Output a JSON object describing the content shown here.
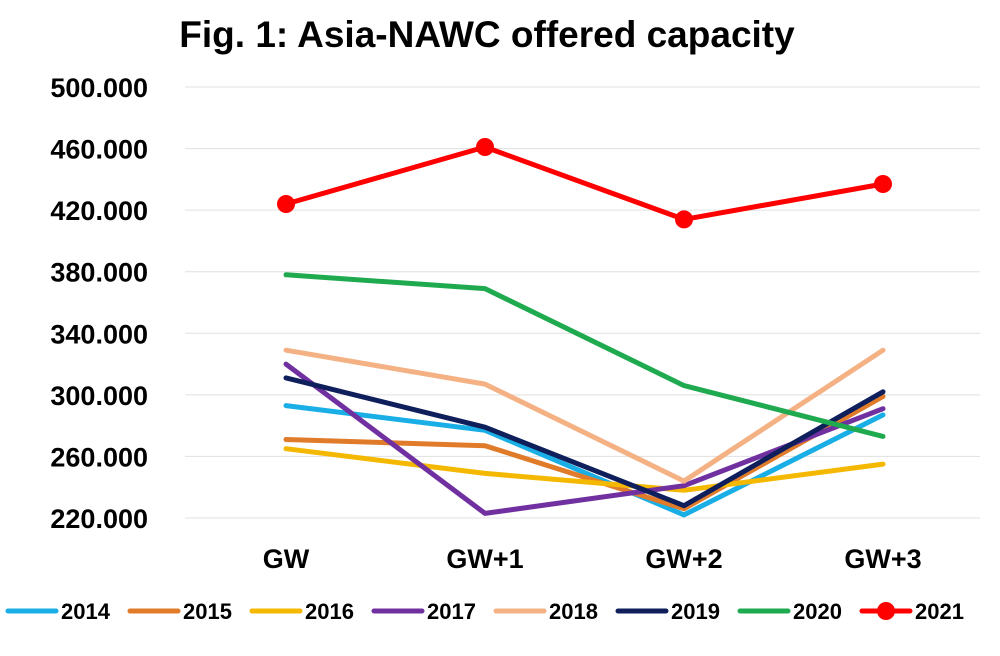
{
  "chart_data": {
    "type": "line",
    "title": "Fig. 1: Asia-NAWC offered capacity",
    "xlabel": "",
    "ylabel": "",
    "categories": [
      "GW",
      "GW+1",
      "GW+2",
      "GW+3"
    ],
    "y_tick_labels": [
      "220.000",
      "260.000",
      "300.000",
      "340.000",
      "380.000",
      "420.000",
      "460.000",
      "500.000"
    ],
    "y_ticks": [
      220000,
      260000,
      300000,
      340000,
      380000,
      420000,
      460000,
      500000
    ],
    "ylim": [
      220000,
      500000
    ],
    "grid": true,
    "legend_position": "bottom",
    "series": [
      {
        "name": "2014",
        "color": "#1aaee6",
        "markers": false,
        "values": [
          293000,
          277000,
          222000,
          287000
        ]
      },
      {
        "name": "2015",
        "color": "#e07b2a",
        "markers": false,
        "values": [
          271000,
          267000,
          226000,
          299000
        ]
      },
      {
        "name": "2016",
        "color": "#f5b800",
        "markers": false,
        "values": [
          265000,
          249000,
          238000,
          255000
        ]
      },
      {
        "name": "2017",
        "color": "#7030a0",
        "markers": false,
        "values": [
          320000,
          223000,
          241000,
          291000
        ]
      },
      {
        "name": "2018",
        "color": "#f4b183",
        "markers": false,
        "values": [
          329000,
          307000,
          244000,
          329000
        ]
      },
      {
        "name": "2019",
        "color": "#0f1f5c",
        "markers": false,
        "values": [
          311000,
          279000,
          228000,
          302000
        ]
      },
      {
        "name": "2020",
        "color": "#1faa50",
        "markers": false,
        "values": [
          378000,
          369000,
          306000,
          273000
        ]
      },
      {
        "name": "2021",
        "color": "#ff0000",
        "markers": true,
        "values": [
          424000,
          461000,
          414000,
          437000
        ]
      }
    ]
  }
}
